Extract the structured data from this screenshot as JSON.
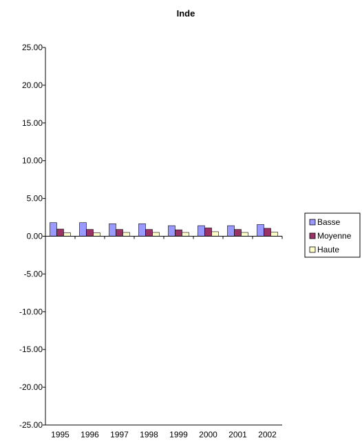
{
  "chart_data": {
    "type": "bar",
    "title": "Inde",
    "xlabel": "",
    "ylabel": "",
    "categories": [
      "1995",
      "1996",
      "1997",
      "1998",
      "1999",
      "2000",
      "2001",
      "2002"
    ],
    "series": [
      {
        "name": "Basse",
        "color": "#9999ff",
        "values": [
          1.8,
          1.8,
          1.65,
          1.65,
          1.4,
          1.4,
          1.4,
          1.55
        ]
      },
      {
        "name": "Moyenne",
        "color": "#993366",
        "values": [
          0.95,
          0.9,
          0.9,
          0.9,
          0.85,
          1.1,
          0.9,
          1.05
        ]
      },
      {
        "name": "Haute",
        "color": "#ffffcc",
        "values": [
          0.45,
          0.45,
          0.5,
          0.5,
          0.5,
          0.6,
          0.5,
          0.55
        ]
      }
    ],
    "ylim": [
      -25,
      25
    ],
    "yticks": [
      25,
      20,
      15,
      10,
      5,
      0,
      -5,
      -10,
      -15,
      -20,
      -25
    ],
    "ytick_labels": [
      "25.00",
      "20.00",
      "15.00",
      "10.00",
      "5.00",
      "0.00",
      "-5.00",
      "-10.00",
      "-15.00",
      "-20.00",
      "-25.00"
    ],
    "grid": false,
    "legend_position": "right"
  }
}
